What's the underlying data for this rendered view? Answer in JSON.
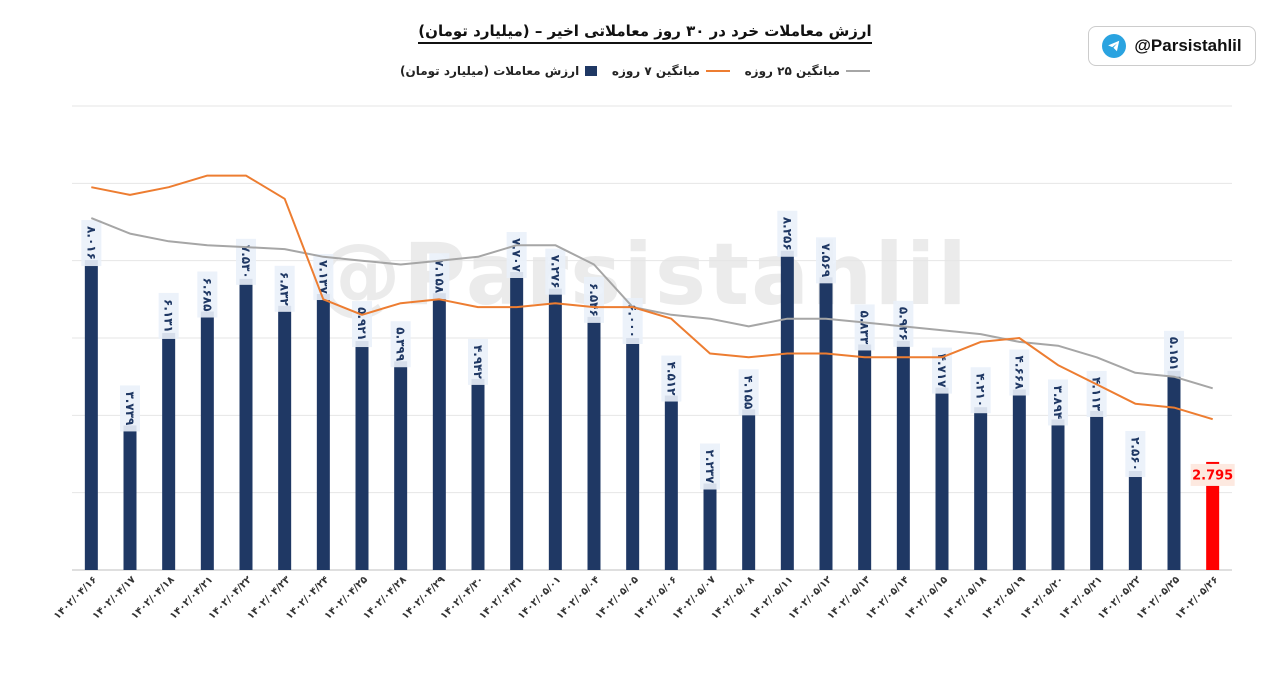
{
  "title": "ارزش معاملات خرد در ۳۰ روز معاملاتی اخیر – (میلیارد تومان)",
  "brand": {
    "handle": "@Parsistahlil",
    "icon": "telegram-icon"
  },
  "watermark": "@Parsistahlil",
  "legend": {
    "bars": "ارزش معاملات (میلیارد تومان)",
    "ma7": "میانگین ۷ روزه",
    "ma25": "میانگین ۲۵ روزه"
  },
  "colors": {
    "bar": "#1f3864",
    "last_bar": "#ff0000",
    "ma7": "#ed7d31",
    "ma25": "#a6a6a6",
    "grid": "#e6e6e6"
  },
  "chart_data": {
    "type": "bar",
    "categories": [
      "۱۴۰۲/۰۴/۱۶",
      "۱۴۰۲/۰۴/۱۷",
      "۱۴۰۲/۰۴/۱۸",
      "۱۴۰۲/۰۴/۲۱",
      "۱۴۰۲/۰۴/۲۲",
      "۱۴۰۲/۰۴/۲۳",
      "۱۴۰۲/۰۴/۲۴",
      "۱۴۰۲/۰۴/۲۵",
      "۱۴۰۲/۰۴/۲۸",
      "۱۴۰۲/۰۴/۲۹",
      "۱۴۰۲/۰۴/۳۰",
      "۱۴۰۲/۰۴/۳۱",
      "۱۴۰۲/۰۵/۰۱",
      "۱۴۰۲/۰۵/۰۴",
      "۱۴۰۲/۰۵/۰۵",
      "۱۴۰۲/۰۵/۰۶",
      "۱۴۰۲/۰۵/۰۷",
      "۱۴۰۲/۰۵/۰۸",
      "۱۴۰۲/۰۵/۱۱",
      "۱۴۰۲/۰۵/۱۲",
      "۱۴۰۲/۰۵/۱۳",
      "۱۴۰۲/۰۵/۱۴",
      "۱۴۰۲/۰۵/۱۵",
      "۱۴۰۲/۰۵/۱۸",
      "۱۴۰۲/۰۵/۱۹",
      "۱۴۰۲/۰۵/۲۰",
      "۱۴۰۲/۰۵/۲۱",
      "۱۴۰۲/۰۵/۲۲",
      "۱۴۰۲/۰۵/۲۵",
      "۱۴۰۲/۰۵/۲۶"
    ],
    "series": [
      {
        "name": "ارزش معاملات (میلیارد تومان)",
        "values": [
          8.016,
          3.739,
          6.131,
          6.685,
          7.53,
          6.832,
          7.137,
          5.921,
          5.399,
          7.158,
          4.942,
          7.707,
          7.276,
          6.546,
          6.0,
          4.512,
          2.237,
          4.155,
          8.256,
          7.569,
          5.833,
          5.926,
          4.717,
          4.21,
          4.668,
          3.894,
          4.113,
          2.56,
          5.151,
          2.795
        ],
        "labels": [
          "۸.۰۱۶",
          "۳.۷۳۹",
          "۶.۱۳۱",
          "۶.۶۸۵",
          "۷.۵۳۰",
          "۶.۸۳۲",
          "۷.۱۳۷",
          "۵.۹۲۱",
          "۵.۳۹۹",
          "۷.۱۵۸",
          "۴.۹۴۲",
          "۷.۷۰۷",
          "۷.۲۷۶",
          "۶.۵۴۶",
          "۶.۰۰۰",
          "۴.۵۱۲",
          "۲.۲۳۷",
          "۴.۱۵۵",
          "۸.۲۵۶",
          "۷.۵۶۹",
          "۵.۸۳۳",
          "۵.۹۲۶",
          "۴.۷۱۷",
          "۴.۲۱۰",
          "۴.۶۶۸",
          "۳.۸۹۴",
          "۴.۱۱۳",
          "۲.۵۶۰",
          "۵.۱۵۱",
          "2.795"
        ]
      },
      {
        "name": "میانگین ۷ روزه",
        "values": [
          9.9,
          9.7,
          9.9,
          10.2,
          10.2,
          9.6,
          7.0,
          6.6,
          6.9,
          7.0,
          6.8,
          6.8,
          6.9,
          6.8,
          6.8,
          6.5,
          5.6,
          5.5,
          5.6,
          5.6,
          5.5,
          5.5,
          5.5,
          5.9,
          6.0,
          5.3,
          4.8,
          4.3,
          4.2,
          3.9
        ]
      },
      {
        "name": "میانگین ۲۵ روزه",
        "values": [
          9.1,
          8.7,
          8.5,
          8.4,
          8.35,
          8.3,
          8.1,
          8.0,
          7.9,
          8.0,
          8.1,
          8.4,
          8.4,
          7.9,
          6.8,
          6.6,
          6.5,
          6.3,
          6.5,
          6.5,
          6.4,
          6.3,
          6.2,
          6.1,
          5.9,
          5.8,
          5.5,
          5.1,
          5.0,
          4.7
        ]
      }
    ],
    "ylim": [
      0,
      12
    ]
  }
}
